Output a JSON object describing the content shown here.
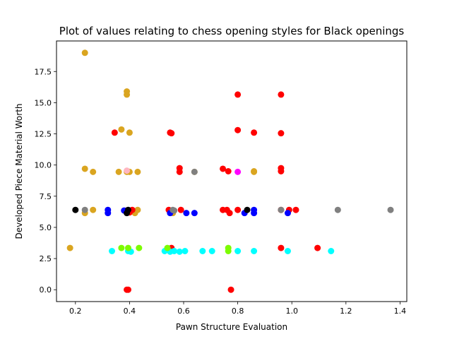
{
  "chart_data": {
    "type": "scatter",
    "title": "Plot of values relating to chess opening styles for Black openings",
    "xlabel": "Pawn Structure Evaluation",
    "ylabel": "Developed Piece Material Worth",
    "xlim": [
      0.13,
      1.425
    ],
    "ylim": [
      -0.95,
      19.95
    ],
    "xticks": [
      0.2,
      0.4,
      0.6,
      0.8,
      1.0,
      1.2,
      1.4
    ],
    "xtick_labels": [
      "0.2",
      "0.4",
      "0.6",
      "0.8",
      "1.0",
      "1.2",
      "1.4"
    ],
    "yticks": [
      0.0,
      2.5,
      5.0,
      7.5,
      10.0,
      12.5,
      15.0,
      17.5
    ],
    "ytick_labels": [
      "0.0",
      "2.5",
      "5.0",
      "7.5",
      "10.0",
      "12.5",
      "15.0",
      "17.5"
    ],
    "grid": false,
    "legend": "none",
    "series": [
      {
        "color": "#daa520",
        "points": [
          [
            0.18,
            3.35
          ],
          [
            0.235,
            19.0
          ],
          [
            0.235,
            9.7
          ],
          [
            0.235,
            6.15
          ],
          [
            0.265,
            9.45
          ],
          [
            0.265,
            6.4
          ],
          [
            0.36,
            9.45
          ],
          [
            0.37,
            12.85
          ],
          [
            0.39,
            15.9
          ],
          [
            0.39,
            15.65
          ],
          [
            0.39,
            9.45
          ],
          [
            0.4,
            9.45
          ],
          [
            0.4,
            12.6
          ],
          [
            0.42,
            6.15
          ],
          [
            0.43,
            6.4
          ],
          [
            0.43,
            9.45
          ],
          [
            0.56,
            6.15
          ],
          [
            0.64,
            9.45
          ],
          [
            0.86,
            9.45
          ],
          [
            0.86,
            9.5
          ]
        ]
      },
      {
        "color": "#ff0000",
        "points": [
          [
            0.345,
            12.6
          ],
          [
            0.39,
            0.0
          ],
          [
            0.395,
            0.0
          ],
          [
            0.39,
            6.35
          ],
          [
            0.4,
            6.2
          ],
          [
            0.41,
            6.4
          ],
          [
            0.55,
            12.6
          ],
          [
            0.555,
            12.55
          ],
          [
            0.545,
            6.4
          ],
          [
            0.555,
            3.35
          ],
          [
            0.585,
            9.75
          ],
          [
            0.585,
            9.45
          ],
          [
            0.59,
            6.4
          ],
          [
            0.745,
            9.7
          ],
          [
            0.745,
            6.4
          ],
          [
            0.765,
            9.5
          ],
          [
            0.76,
            6.4
          ],
          [
            0.77,
            6.15
          ],
          [
            0.775,
            0.0
          ],
          [
            0.8,
            15.65
          ],
          [
            0.8,
            12.8
          ],
          [
            0.8,
            6.4
          ],
          [
            0.86,
            12.6
          ],
          [
            0.96,
            15.65
          ],
          [
            0.96,
            12.55
          ],
          [
            0.96,
            9.75
          ],
          [
            0.96,
            9.5
          ],
          [
            0.96,
            6.4
          ],
          [
            0.96,
            3.35
          ],
          [
            0.99,
            6.4
          ],
          [
            1.015,
            6.4
          ],
          [
            1.095,
            3.35
          ]
        ]
      },
      {
        "color": "#0000ff",
        "points": [
          [
            0.32,
            6.4
          ],
          [
            0.32,
            6.15
          ],
          [
            0.38,
            6.35
          ],
          [
            0.55,
            6.15
          ],
          [
            0.61,
            6.15
          ],
          [
            0.64,
            6.15
          ],
          [
            0.825,
            6.15
          ],
          [
            0.86,
            6.4
          ],
          [
            0.86,
            6.15
          ],
          [
            0.985,
            6.15
          ]
        ]
      },
      {
        "color": "#000000",
        "points": [
          [
            0.2,
            6.4
          ],
          [
            0.39,
            6.15
          ],
          [
            0.395,
            6.4
          ],
          [
            0.835,
            6.4
          ]
        ]
      },
      {
        "color": "#808080",
        "points": [
          [
            0.235,
            6.4
          ],
          [
            0.56,
            6.4
          ],
          [
            0.565,
            6.35
          ],
          [
            0.64,
            9.45
          ],
          [
            0.96,
            6.4
          ],
          [
            1.17,
            6.4
          ],
          [
            1.365,
            6.4
          ]
        ]
      },
      {
        "color": "#00ffff",
        "points": [
          [
            0.335,
            3.1
          ],
          [
            0.395,
            3.1
          ],
          [
            0.405,
            3.05
          ],
          [
            0.53,
            3.1
          ],
          [
            0.55,
            3.05
          ],
          [
            0.565,
            3.1
          ],
          [
            0.585,
            3.05
          ],
          [
            0.605,
            3.1
          ],
          [
            0.67,
            3.1
          ],
          [
            0.705,
            3.1
          ],
          [
            0.8,
            3.1
          ],
          [
            0.86,
            3.1
          ],
          [
            0.985,
            3.1
          ],
          [
            1.145,
            3.1
          ]
        ]
      },
      {
        "color": "#7cfc00",
        "points": [
          [
            0.37,
            3.35
          ],
          [
            0.395,
            3.35
          ],
          [
            0.435,
            3.35
          ],
          [
            0.54,
            3.35
          ],
          [
            0.765,
            3.35
          ],
          [
            0.765,
            3.1
          ]
        ]
      },
      {
        "color": "#ff00ff",
        "points": [
          [
            0.8,
            9.45
          ]
        ]
      },
      {
        "color": "#ffb6c1",
        "points": [
          [
            0.39,
            9.55
          ]
        ]
      }
    ]
  }
}
